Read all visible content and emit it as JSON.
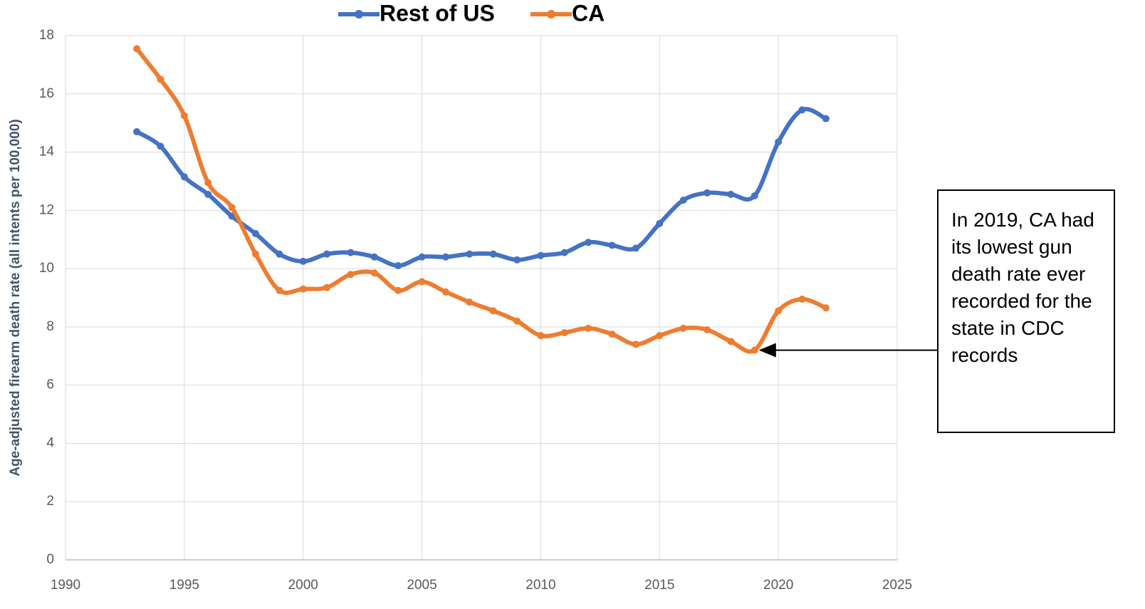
{
  "chart_data": {
    "type": "line",
    "y_label": "Age-adjusted firearm death rate (all intents per 100,000)",
    "x": [
      1993,
      1994,
      1995,
      1996,
      1997,
      1998,
      1999,
      2000,
      2001,
      2002,
      2003,
      2004,
      2005,
      2006,
      2007,
      2008,
      2009,
      2010,
      2011,
      2012,
      2013,
      2014,
      2015,
      2016,
      2017,
      2018,
      2019,
      2020,
      2021,
      2022
    ],
    "series": [
      {
        "name": "Rest of US",
        "color": "#4472c4",
        "values": [
          14.7,
          14.2,
          13.15,
          12.55,
          11.8,
          11.2,
          10.5,
          10.25,
          10.5,
          10.55,
          10.4,
          10.1,
          10.4,
          10.4,
          10.5,
          10.5,
          10.3,
          10.45,
          10.55,
          10.9,
          10.8,
          10.7,
          11.55,
          12.35,
          12.6,
          12.55,
          12.5,
          14.35,
          15.45,
          15.15
        ]
      },
      {
        "name": "CA",
        "color": "#ed7d31",
        "values": [
          17.55,
          16.5,
          15.25,
          12.95,
          12.1,
          10.5,
          9.25,
          9.3,
          9.35,
          9.8,
          9.85,
          9.25,
          9.55,
          9.2,
          8.85,
          8.55,
          8.2,
          7.7,
          7.8,
          7.95,
          7.75,
          7.4,
          7.7,
          7.95,
          7.9,
          7.5,
          7.2,
          8.55,
          8.95,
          8.65
        ]
      }
    ],
    "xlim": [
      1990,
      2025
    ],
    "xticks": [
      1990,
      1995,
      2000,
      2005,
      2010,
      2015,
      2020,
      2025
    ],
    "ylim": [
      0,
      18
    ],
    "yticks": [
      0,
      2,
      4,
      6,
      8,
      10,
      12,
      14,
      16,
      18
    ],
    "grid": true,
    "legend": "top",
    "annotation": "In 2019, CA had its lowest gun death rate ever recorded for the state in CDC records",
    "annotation_x": 2019,
    "annotation_y": 7.2
  }
}
